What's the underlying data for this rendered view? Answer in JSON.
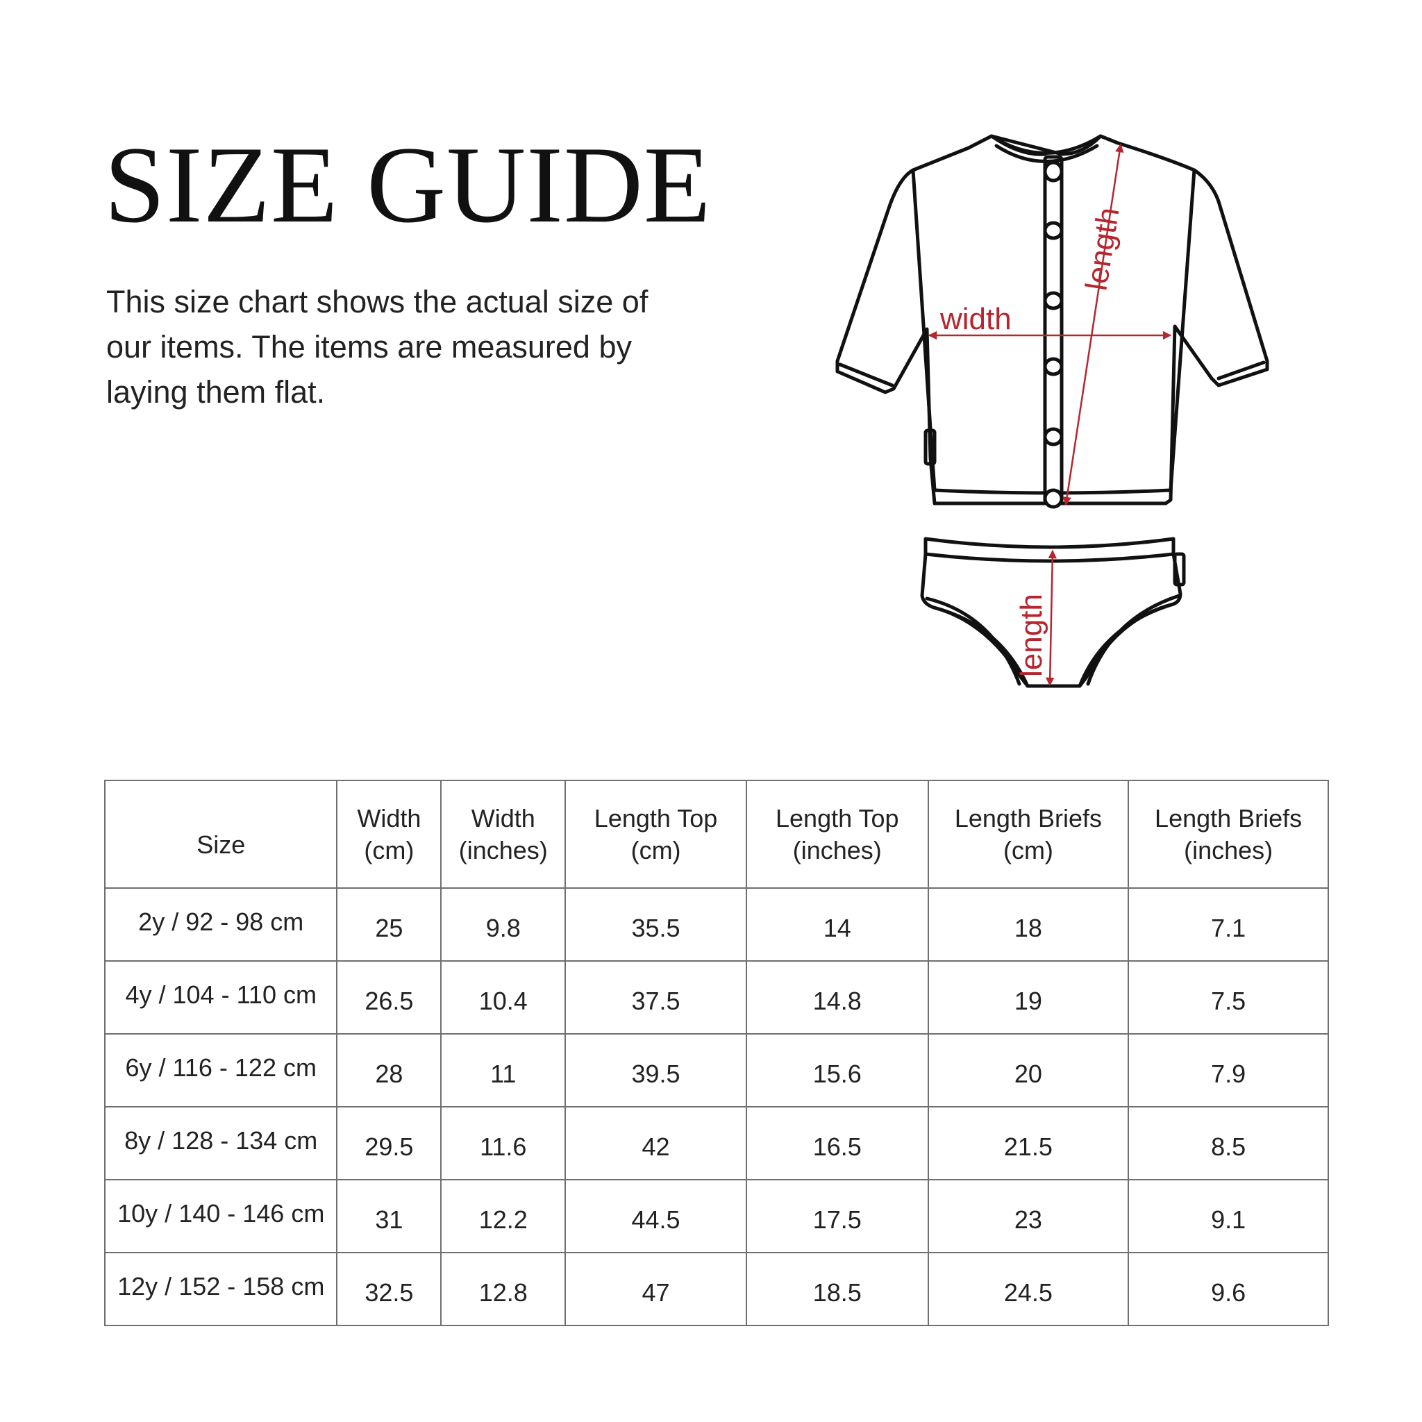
{
  "title": "SIZE GUIDE",
  "intro": "This size chart shows the actual size of our items. The items are measured by laying them flat.",
  "illustration": {
    "top_width_label": "width",
    "top_length_label": "length",
    "briefs_length_label": "length",
    "accent_color": "#b5262f"
  },
  "table": {
    "headers": [
      "Size",
      "Width (cm)",
      "Width (inches)",
      "Length Top (cm)",
      "Length Top (inches)",
      "Length Briefs (cm)",
      "Length Briefs (inches)"
    ],
    "rows": [
      [
        "2y / 92 - 98 cm",
        "25",
        "9.8",
        "35.5",
        "14",
        "18",
        "7.1"
      ],
      [
        "4y / 104 - 110 cm",
        "26.5",
        "10.4",
        "37.5",
        "14.8",
        "19",
        "7.5"
      ],
      [
        "6y / 116 - 122 cm",
        "28",
        "11",
        "39.5",
        "15.6",
        "20",
        "7.9"
      ],
      [
        "8y / 128 - 134 cm",
        "29.5",
        "11.6",
        "42",
        "16.5",
        "21.5",
        "8.5"
      ],
      [
        "10y / 140 - 146 cm",
        "31",
        "12.2",
        "44.5",
        "17.5",
        "23",
        "9.1"
      ],
      [
        "12y / 152 - 158 cm",
        "32.5",
        "12.8",
        "47",
        "18.5",
        "24.5",
        "9.6"
      ]
    ]
  }
}
